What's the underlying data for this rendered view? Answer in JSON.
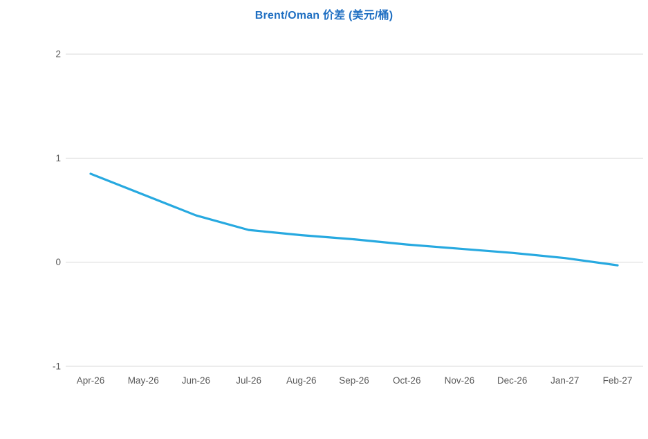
{
  "title": "Brent/Oman 价差 (美元/桶)",
  "colors": {
    "title": "#1f6fc2",
    "line": "#27a9e0",
    "grid": "#d9d9d9",
    "tick_label": "#595959",
    "background": "#ffffff"
  },
  "chart_data": {
    "type": "line",
    "title": "Brent/Oman 价差 (美元/桶)",
    "categories": [
      "Apr-26",
      "May-26",
      "Jun-26",
      "Jul-26",
      "Aug-26",
      "Sep-26",
      "Oct-26",
      "Nov-26",
      "Dec-26",
      "Jan-27",
      "Feb-27"
    ],
    "series": [
      {
        "name": "Brent/Oman 价差",
        "values": [
          0.85,
          0.65,
          0.45,
          0.31,
          0.26,
          0.22,
          0.17,
          0.13,
          0.09,
          0.04,
          -0.03
        ]
      }
    ],
    "xlabel": "",
    "ylabel": "",
    "ylim": [
      -1,
      2
    ],
    "yticks": [
      2,
      1,
      0,
      -1
    ],
    "grid": true,
    "legend": "none",
    "markers": false
  }
}
